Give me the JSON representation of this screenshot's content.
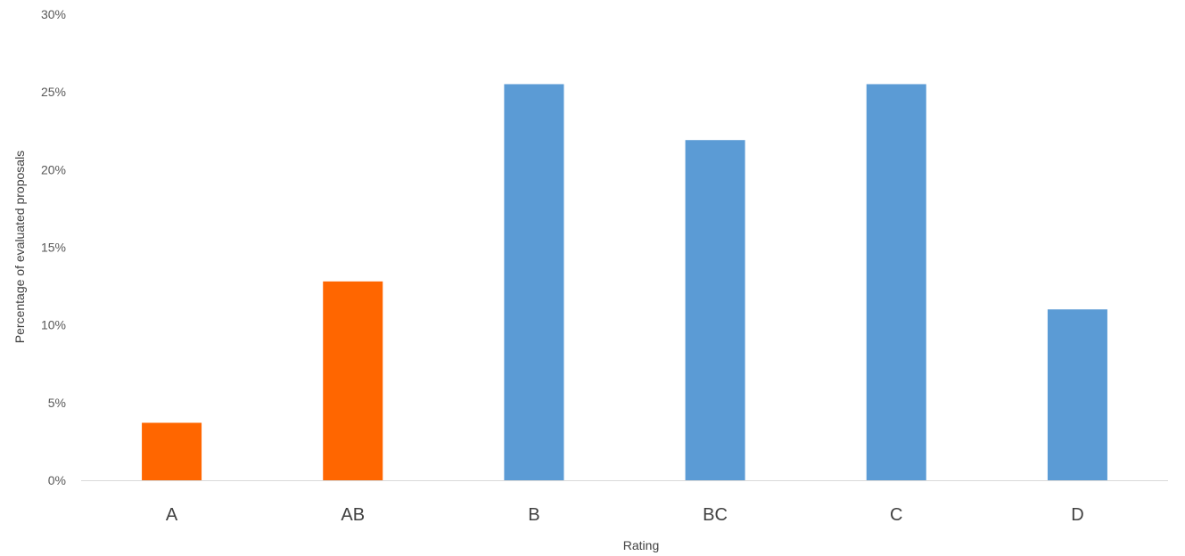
{
  "chart_data": {
    "type": "bar",
    "categories": [
      "A",
      "AB",
      "B",
      "BC",
      "C",
      "D"
    ],
    "values": [
      3.7,
      12.8,
      25.5,
      21.9,
      25.5,
      11.0
    ],
    "unit": "%",
    "xlabel": "Rating",
    "ylabel": "Percentage of evaluated proposals",
    "ylim": [
      0,
      30
    ],
    "yticks": [
      "0%",
      "5%",
      "10%",
      "15%",
      "20%",
      "25%",
      "30%"
    ],
    "ytick_values": [
      0,
      5,
      10,
      15,
      20,
      25,
      30
    ],
    "grid": false,
    "legend": "none",
    "colors": {
      "A": "#ff6600",
      "AB": "#ff6600",
      "B": "#5b9bd5",
      "BC": "#5b9bd5",
      "C": "#5b9bd5",
      "D": "#5b9bd5"
    },
    "axis_color": "#d9d9d9"
  }
}
